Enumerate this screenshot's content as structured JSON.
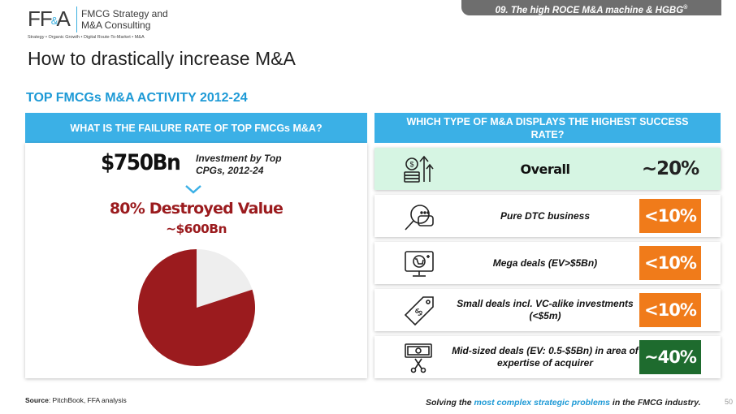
{
  "header": {
    "logo_letters_left": "FF",
    "logo_letters_amp": "&",
    "logo_letters_right": "A",
    "logo_name_line1": "FMCG Strategy and",
    "logo_name_line2": "M&A Consulting",
    "logo_tagline": "Strategy • Organic Growth • Digital Route-To-Market • M&A",
    "section_tab": "09. The high ROCE M&A machine & HGBG",
    "section_tab_sup": "®"
  },
  "page_title": "How to drastically increase M&A",
  "subtitle": "TOP FMCGs M&A ACTIVITY 2012-24",
  "left_panel": {
    "heading": "WHAT IS THE FAILURE RATE OF TOP FMCGs M&A?",
    "amount": "$750Bn",
    "amount_label": "Investment by Top CPGs, 2012-24",
    "destroyed_title": "80% Destroyed Value",
    "destroyed_sub": "~$600Bn",
    "pie": {
      "destroyed_share": 0.8,
      "destroyed_color": "#9b1b1e",
      "rest_color": "#eeeeee"
    }
  },
  "right_panel": {
    "heading": "WHICH TYPE OF M&A DISPLAYS THE HIGHEST SUCCESS RATE?",
    "rows": [
      {
        "label": "Overall",
        "value": "~20%",
        "icon": "money-growth-icon"
      },
      {
        "label": "Pure DTC business",
        "value": "<10%",
        "icon": "search-chat-icon",
        "value_color": "#f07b1a"
      },
      {
        "label": "Mega deals (EV>$5Bn)",
        "value": "<10%",
        "icon": "online-shop-icon",
        "value_color": "#f07b1a"
      },
      {
        "label": "Small deals incl. VC-alike investments (<$5m)",
        "value": "<10%",
        "icon": "price-tag-icon",
        "value_color": "#f07b1a"
      },
      {
        "label": "Mid-sized deals (EV: 0.5-$5Bn) in area of expertise of acquirer",
        "value": "~40%",
        "icon": "cut-money-icon",
        "value_color": "#1e6b2e"
      }
    ]
  },
  "source_label": "Source",
  "source_text": ": PitchBook, FFA analysis",
  "footer": {
    "pre": "Solving the ",
    "highlight": "most complex strategic problems",
    "post": " in the FMCG industry."
  },
  "page_number": "50"
}
